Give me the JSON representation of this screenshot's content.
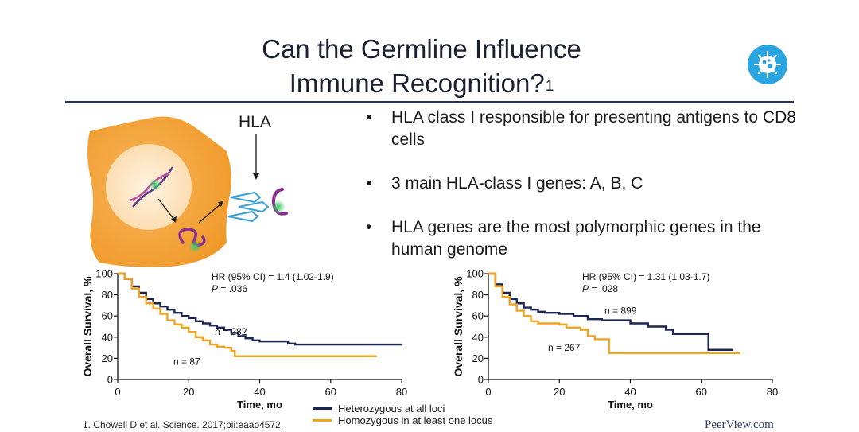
{
  "slide": {
    "title_line1": "Can the Germline Influence",
    "title_line2": "Immune Recognition?",
    "title_superscript": "1",
    "logo_icon": "virus-cell-icon",
    "accent_color": "#27304d"
  },
  "illustration": {
    "label": "HLA",
    "cell_color": "#f4a23c",
    "nucleus_color": "#fde3c0",
    "arrow_color": "#3aa0d6",
    "icons": [
      "dna-icon",
      "peptide-icon",
      "hla-receptor-icon"
    ]
  },
  "bullets": [
    {
      "mark": "•",
      "text": "HLA class I responsible for presenting antigens to CD8 cells"
    },
    {
      "mark": "•",
      "text": "3 main HLA-class I genes: A, B, C"
    },
    {
      "mark": "•",
      "text": "HLA genes are the most polymorphic genes in the human genome"
    }
  ],
  "chart_data": [
    {
      "type": "line",
      "subtype": "kaplan-meier",
      "xlabel": "Time, mo",
      "ylabel": "Overall Survival, %",
      "xlim": [
        0,
        80
      ],
      "ylim": [
        0,
        100
      ],
      "xticks": [
        0,
        20,
        40,
        60,
        80
      ],
      "yticks": [
        0,
        20,
        40,
        60,
        80,
        100
      ],
      "annotation_hr": "HR (95% CI) = 1.4 (1.02-1.9)",
      "annotation_p_label": "P",
      "annotation_p_value": " = .036",
      "series": [
        {
          "name": "Heterozygous at all loci",
          "color": "#1c2653",
          "n_label": "n = 282",
          "x": [
            0,
            2,
            4,
            6,
            8,
            10,
            12,
            14,
            16,
            18,
            20,
            22,
            24,
            26,
            28,
            30,
            32,
            34,
            36,
            38,
            40,
            45,
            48,
            50,
            55,
            60,
            65,
            70,
            75,
            80
          ],
          "y": [
            100,
            95,
            88,
            82,
            76,
            72,
            69,
            66,
            63,
            60,
            58,
            55,
            53,
            51,
            49,
            47,
            44,
            41,
            39,
            37,
            36,
            36,
            34,
            33,
            33,
            33,
            33,
            33,
            33,
            33
          ]
        },
        {
          "name": "Homozygous in at least one locus",
          "color": "#f0a320",
          "n_label": "n = 87",
          "x": [
            0,
            2,
            4,
            6,
            8,
            10,
            12,
            14,
            16,
            18,
            20,
            22,
            24,
            26,
            28,
            30,
            32,
            33,
            40,
            50,
            60,
            70,
            73
          ],
          "y": [
            100,
            95,
            86,
            78,
            72,
            67,
            62,
            56,
            52,
            49,
            45,
            40,
            37,
            33,
            31,
            30,
            27,
            22,
            22,
            22,
            22,
            22,
            22
          ]
        }
      ]
    },
    {
      "type": "line",
      "subtype": "kaplan-meier",
      "xlabel": "Time, mo",
      "ylabel": "Overall Survival, %",
      "xlim": [
        0,
        80
      ],
      "ylim": [
        0,
        100
      ],
      "xticks": [
        0,
        20,
        40,
        60,
        80
      ],
      "yticks": [
        0,
        20,
        40,
        60,
        80,
        100
      ],
      "annotation_hr": "HR (95% CI) = 1.31 (1.03-1.7)",
      "annotation_p_label": "P",
      "annotation_p_value": " = .028",
      "series": [
        {
          "name": "Heterozygous at all loci",
          "color": "#1c2653",
          "n_label": "n = 899",
          "x": [
            0,
            2,
            4,
            6,
            8,
            10,
            12,
            14,
            16,
            20,
            24,
            28,
            32,
            35,
            40,
            45,
            50,
            52,
            55,
            60,
            62,
            65,
            69
          ],
          "y": [
            100,
            90,
            82,
            76,
            72,
            68,
            66,
            64,
            63,
            62,
            60,
            57,
            56,
            56,
            53,
            50,
            47,
            43,
            43,
            43,
            28,
            28,
            28
          ]
        },
        {
          "name": "Homozygous in at least one locus",
          "color": "#f0a320",
          "n_label": "n = 267",
          "x": [
            0,
            2,
            4,
            6,
            8,
            10,
            12,
            14,
            18,
            20,
            22,
            26,
            28,
            30,
            32,
            34,
            40,
            50,
            60,
            71
          ],
          "y": [
            100,
            88,
            78,
            71,
            65,
            60,
            55,
            53,
            53,
            52,
            49,
            47,
            41,
            38,
            38,
            25,
            25,
            25,
            25,
            25
          ]
        }
      ]
    }
  ],
  "legend": {
    "items": [
      {
        "label": "Heterozygous at all loci",
        "color": "#1c2653"
      },
      {
        "label": "Homozygous in at least one locus",
        "color": "#f0a320"
      }
    ]
  },
  "footer": {
    "citation": "1. Chowell D et al. Science. 2017;pii:eaao4572.",
    "brand": "PeerView.com"
  }
}
